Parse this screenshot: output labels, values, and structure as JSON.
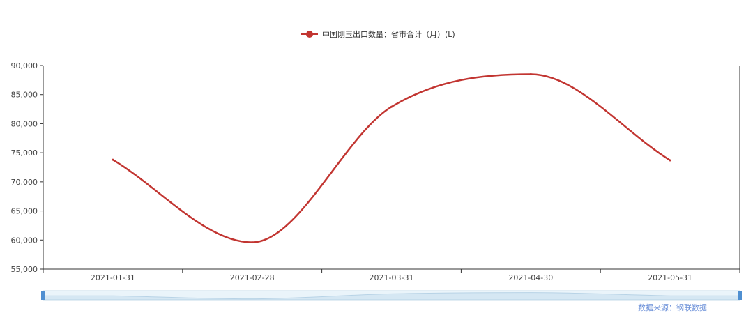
{
  "chart_data": {
    "type": "line",
    "legend": "中国刚玉出口数量：省市合计（月）(L)",
    "legend_position": "top",
    "categories": [
      "2021-01-31",
      "2021-02-28",
      "2021-03-31",
      "2021-04-30",
      "2021-05-31"
    ],
    "series": [
      {
        "name": "中国刚玉出口数量：省市合计（月）(L)",
        "values": [
          73800,
          59600,
          82900,
          88500,
          73700
        ]
      }
    ],
    "ylim": [
      55000,
      90000
    ],
    "yticks": [
      "90,000",
      "85,000",
      "80,000",
      "75,000",
      "70,000",
      "65,000",
      "60,000",
      "55,000"
    ],
    "grid": false,
    "colors": {
      "series": "#c23531",
      "axis": "#333333",
      "source": "#6a8fd8"
    }
  },
  "source": "数据来源：钢联数据",
  "zoom": {
    "start": 0,
    "end": 100
  }
}
